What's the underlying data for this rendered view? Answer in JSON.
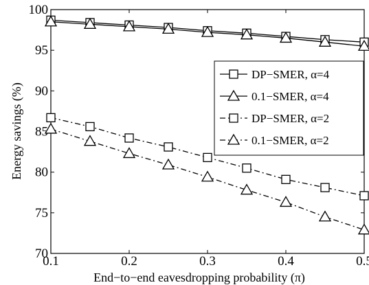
{
  "chart_data": {
    "type": "line",
    "xlabel": "End−to−end eavesdropping probability (π)",
    "ylabel": "Energy savings (%)",
    "xlim": [
      0.1,
      0.5
    ],
    "ylim": [
      70,
      100
    ],
    "x_ticks": [
      "0.1",
      "0.2",
      "0.3",
      "0.4",
      "0.5"
    ],
    "y_ticks": [
      "70",
      "75",
      "80",
      "85",
      "90",
      "95",
      "100"
    ],
    "grid": false,
    "legend_position": "right",
    "x": [
      0.1,
      0.15,
      0.2,
      0.25,
      0.3,
      0.35,
      0.4,
      0.45,
      0.5
    ],
    "series": [
      {
        "name": "DP−SMER, α=4",
        "marker": "square",
        "line": "solid",
        "values": [
          98.7,
          98.4,
          98.1,
          97.8,
          97.4,
          97.1,
          96.7,
          96.3,
          96.0
        ]
      },
      {
        "name": "0.1−SMER, α=4",
        "marker": "triangle",
        "line": "solid",
        "values": [
          98.5,
          98.2,
          97.9,
          97.6,
          97.2,
          96.9,
          96.5,
          96.0,
          95.5
        ]
      },
      {
        "name": "DP−SMER, α=2",
        "marker": "square",
        "line": "dashdot",
        "values": [
          86.7,
          85.6,
          84.2,
          83.1,
          81.8,
          80.5,
          79.1,
          78.1,
          77.1
        ]
      },
      {
        "name": "0.1−SMER, α=2",
        "marker": "triangle",
        "line": "dashdot",
        "values": [
          85.3,
          83.8,
          82.3,
          80.9,
          79.4,
          77.8,
          76.3,
          74.5,
          72.9
        ]
      }
    ]
  }
}
